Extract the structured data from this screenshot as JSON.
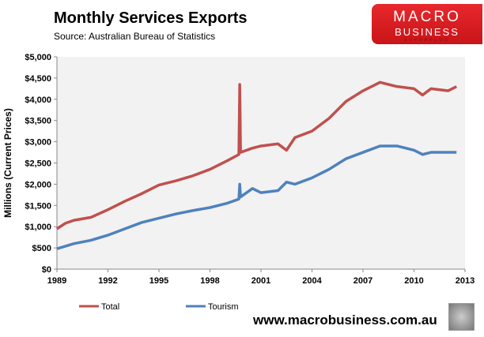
{
  "header": {
    "title": "Monthly  Services Exports",
    "source": "Source:  Australian Bureau of Statistics"
  },
  "logo": {
    "line1": "MACRO",
    "line2": "BUSINESS",
    "line3": "SUPERBLOG"
  },
  "footer": {
    "url": "www.macrobusiness.com.au"
  },
  "chart_data": {
    "type": "line",
    "title": "Monthly  Services Exports",
    "xlabel": "",
    "ylabel": "Millions (Current Prices)",
    "xlim": [
      1989,
      2013
    ],
    "ylim": [
      0,
      5000
    ],
    "xticks": [
      "1989",
      "1992",
      "1995",
      "1998",
      "2001",
      "2004",
      "2007",
      "2010",
      "2013"
    ],
    "yticks": [
      "$0",
      "$500",
      "$1,000",
      "$1,500",
      "$2,000",
      "$2,500",
      "$3,000",
      "$3,500",
      "$4,000",
      "$4,500",
      "$5,000"
    ],
    "legend_position": "bottom",
    "series": [
      {
        "name": "Total",
        "color": "#c0504d",
        "x": [
          1989,
          1989.5,
          1990,
          1991,
          1992,
          1993,
          1994,
          1995,
          1996,
          1997,
          1998,
          1999,
          1999.7,
          1999.75,
          1999.8,
          2000.5,
          2001,
          2002,
          2002.5,
          2003,
          2004,
          2005,
          2006,
          2007,
          2008,
          2009,
          2010,
          2010.5,
          2011,
          2012,
          2012.5
        ],
        "values": [
          950,
          1080,
          1150,
          1220,
          1400,
          1600,
          1780,
          1980,
          2080,
          2200,
          2350,
          2550,
          2700,
          4350,
          2750,
          2850,
          2900,
          2950,
          2800,
          3100,
          3250,
          3550,
          3950,
          4200,
          4400,
          4300,
          4250,
          4100,
          4250,
          4200,
          4300
        ]
      },
      {
        "name": "Tourism",
        "color": "#4f81bd",
        "x": [
          1989,
          1990,
          1991,
          1992,
          1993,
          1994,
          1995,
          1996,
          1997,
          1998,
          1999,
          1999.7,
          1999.75,
          1999.8,
          2000.5,
          2001,
          2002,
          2002.5,
          2003,
          2004,
          2005,
          2006,
          2007,
          2008,
          2009,
          2010,
          2010.5,
          2011,
          2012,
          2012.5
        ],
        "values": [
          480,
          600,
          680,
          800,
          950,
          1100,
          1200,
          1300,
          1380,
          1450,
          1550,
          1650,
          2000,
          1700,
          1900,
          1800,
          1850,
          2050,
          2000,
          2150,
          2350,
          2600,
          2750,
          2900,
          2900,
          2800,
          2700,
          2750,
          2750,
          2750
        ]
      }
    ]
  }
}
